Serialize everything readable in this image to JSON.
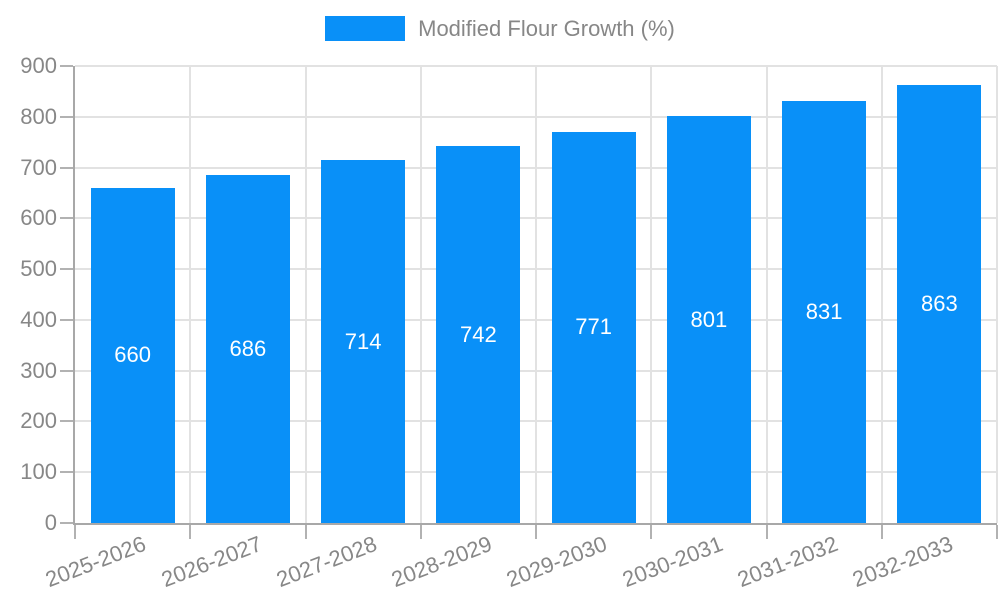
{
  "chart_data": {
    "type": "bar",
    "title": "Modified Flour Growth (%)",
    "legend_position": "top",
    "categories": [
      "2025-2026",
      "2026-2027",
      "2027-2028",
      "2028-2029",
      "2029-2030",
      "2030-2031",
      "2031-2032",
      "2032-2033"
    ],
    "series": [
      {
        "name": "Modified Flour Growth (%)",
        "values": [
          660,
          686,
          714,
          742,
          771,
          801,
          831,
          863
        ]
      }
    ],
    "value_labels": "inside-center",
    "xlabel": "",
    "ylabel": "",
    "ylim": [
      0,
      900
    ],
    "ytick_step": 100,
    "grid": true,
    "x_tick_rotation_deg": -21,
    "colors": {
      "bar": "#0990f8",
      "value_label": "#ffffff",
      "axis_text": "#878787",
      "legend_text": "#878787",
      "gridline": "#e2e2e2",
      "axis_line": "#a8a8a8",
      "tick": "#b2b2b2",
      "background": "#ffffff"
    }
  }
}
